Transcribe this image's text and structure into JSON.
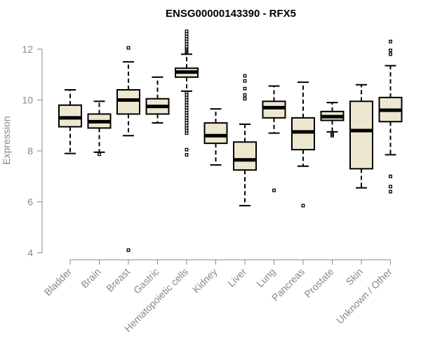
{
  "chart_data": {
    "type": "boxplot",
    "title": "ENSG00000143390 - RFX5",
    "xlabel": "",
    "ylabel": "Expression",
    "ylim": [
      4,
      12.7
    ],
    "yticks": [
      4,
      6,
      8,
      10,
      12
    ],
    "box_fill": "#ede7d0",
    "box_stroke": "#000000",
    "categories": [
      "Bladder",
      "Brain",
      "Breast",
      "Gastric",
      "Hematopoietic cells",
      "Kidney",
      "Liver",
      "Lung",
      "Pancreas",
      "Prostate",
      "Skin",
      "Unknown / Other"
    ],
    "boxes": [
      {
        "name": "Bladder",
        "whisker_low": 7.9,
        "q1": 8.95,
        "median": 9.3,
        "q3": 9.8,
        "whisker_high": 10.4,
        "outliers": []
      },
      {
        "name": "Brain",
        "whisker_low": 7.95,
        "q1": 8.9,
        "median": 9.15,
        "q3": 9.45,
        "whisker_high": 9.95,
        "outliers": [
          7.87
        ]
      },
      {
        "name": "Breast",
        "whisker_low": 8.6,
        "q1": 9.45,
        "median": 10.0,
        "q3": 10.4,
        "whisker_high": 11.5,
        "outliers": [
          12.05,
          4.1
        ]
      },
      {
        "name": "Gastric",
        "whisker_low": 9.1,
        "q1": 9.45,
        "median": 9.75,
        "q3": 10.05,
        "whisker_high": 10.9,
        "outliers": []
      },
      {
        "name": "Hematopoietic cells",
        "whisker_low": 10.35,
        "q1": 10.9,
        "median": 11.1,
        "q3": 11.25,
        "whisker_high": 11.8,
        "outliers": [
          12.7,
          12.6,
          12.5,
          12.4,
          12.3,
          12.2,
          12.1,
          12.0,
          11.95,
          11.9,
          11.85,
          10.3,
          10.2,
          10.1,
          10.0,
          9.9,
          9.8,
          9.7,
          9.6,
          9.5,
          9.4,
          9.3,
          9.2,
          9.1,
          9.0,
          8.9,
          8.8,
          8.7,
          8.05,
          7.85
        ]
      },
      {
        "name": "Kidney",
        "whisker_low": 7.45,
        "q1": 8.3,
        "median": 8.6,
        "q3": 9.1,
        "whisker_high": 9.65,
        "outliers": []
      },
      {
        "name": "Liver",
        "whisker_low": 5.85,
        "q1": 7.25,
        "median": 7.65,
        "q3": 8.35,
        "whisker_high": 9.05,
        "outliers": [
          10.95,
          10.75,
          10.45,
          10.2,
          10.05
        ]
      },
      {
        "name": "Lung",
        "whisker_low": 8.7,
        "q1": 9.3,
        "median": 9.7,
        "q3": 9.95,
        "whisker_high": 10.55,
        "outliers": [
          6.45
        ]
      },
      {
        "name": "Pancreas",
        "whisker_low": 7.4,
        "q1": 8.05,
        "median": 8.75,
        "q3": 9.3,
        "whisker_high": 10.7,
        "outliers": [
          5.85
        ]
      },
      {
        "name": "Prostate",
        "whisker_low": 8.75,
        "q1": 9.2,
        "median": 9.35,
        "q3": 9.55,
        "whisker_high": 9.9,
        "outliers": [
          8.65,
          8.6
        ]
      },
      {
        "name": "Skin",
        "whisker_low": 6.55,
        "q1": 7.3,
        "median": 8.8,
        "q3": 9.95,
        "whisker_high": 10.6,
        "outliers": []
      },
      {
        "name": "Unknown / Other",
        "whisker_low": 7.85,
        "q1": 9.15,
        "median": 9.6,
        "q3": 10.1,
        "whisker_high": 11.35,
        "outliers": [
          12.3,
          11.95,
          11.8,
          7.0,
          6.6,
          6.4
        ]
      }
    ]
  }
}
